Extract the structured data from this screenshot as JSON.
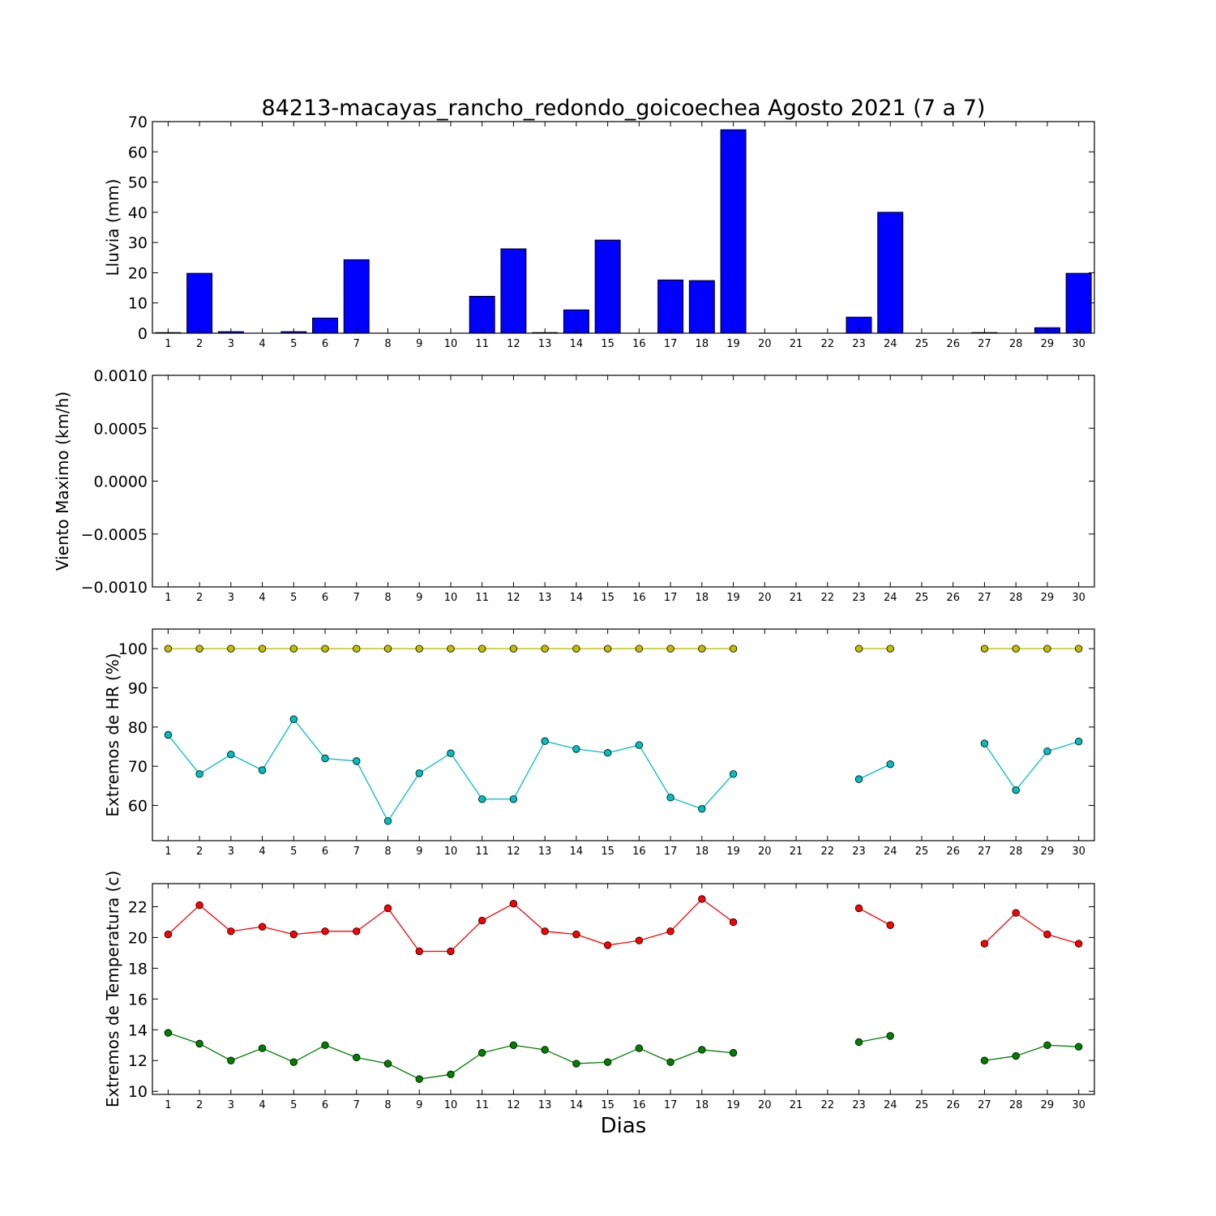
{
  "title": "84213-macayas_rancho_redondo_goicoechea Agosto 2021  (7 a 7)",
  "xlabel": "Dias",
  "chart_data": [
    {
      "type": "bar",
      "ylabel": "Lluvia (mm)",
      "ylim": [
        0,
        70
      ],
      "yticks": [
        "0",
        "10",
        "20",
        "30",
        "40",
        "50",
        "60",
        "70"
      ],
      "x": [
        1,
        2,
        3,
        4,
        5,
        6,
        7,
        8,
        9,
        10,
        11,
        12,
        13,
        14,
        15,
        16,
        17,
        18,
        19,
        20,
        21,
        22,
        23,
        24,
        25,
        26,
        27,
        28,
        29,
        30
      ],
      "values": [
        0.2,
        19.8,
        0.5,
        0,
        0.5,
        5,
        24.3,
        0,
        0,
        0,
        12.2,
        27.9,
        0.2,
        7.7,
        30.8,
        0,
        17.6,
        17.4,
        67.3,
        0,
        0,
        0,
        5.3,
        40,
        0,
        0,
        0.2,
        0,
        1.8,
        19.8
      ],
      "color": "#0000ff"
    },
    {
      "type": "line",
      "ylabel": "Viento Maximo (km/h)",
      "ylim": [
        -0.001,
        0.001
      ],
      "yticks": [
        "−0.0010",
        "−0.0005",
        "0.0000",
        "0.0005",
        "0.0010"
      ],
      "x": [
        1,
        2,
        3,
        4,
        5,
        6,
        7,
        8,
        9,
        10,
        11,
        12,
        13,
        14,
        15,
        16,
        17,
        18,
        19,
        20,
        21,
        22,
        23,
        24,
        25,
        26,
        27,
        28,
        29,
        30
      ],
      "series": []
    },
    {
      "type": "line",
      "ylabel": "Extremos de HR (%)",
      "ylim": [
        51,
        105
      ],
      "yticks": [
        "60",
        "70",
        "80",
        "90",
        "100"
      ],
      "x": [
        1,
        2,
        3,
        4,
        5,
        6,
        7,
        8,
        9,
        10,
        11,
        12,
        13,
        14,
        15,
        16,
        17,
        18,
        19,
        20,
        21,
        22,
        23,
        24,
        25,
        26,
        27,
        28,
        29,
        30
      ],
      "series": [
        {
          "color": "#bfbf00",
          "values": [
            100,
            100,
            100,
            100,
            100,
            100,
            100,
            100,
            100,
            100,
            100,
            100,
            100,
            100,
            100,
            100,
            100,
            100,
            100,
            null,
            null,
            null,
            100,
            100,
            null,
            null,
            100,
            100,
            100,
            100
          ]
        },
        {
          "color": "#00bfbf",
          "values": [
            78,
            68,
            73,
            69,
            82,
            72,
            71.3,
            56,
            68.2,
            73.3,
            61.6,
            61.6,
            76.4,
            74.4,
            73.4,
            75.4,
            62,
            59.1,
            68,
            null,
            null,
            null,
            66.7,
            70.5,
            null,
            null,
            75.8,
            63.9,
            73.8,
            76.3
          ]
        }
      ]
    },
    {
      "type": "line",
      "ylabel": "Extremos de Temperatura (c)",
      "ylim": [
        9.8,
        23.5
      ],
      "yticks": [
        "10",
        "12",
        "14",
        "16",
        "18",
        "20",
        "22"
      ],
      "x": [
        1,
        2,
        3,
        4,
        5,
        6,
        7,
        8,
        9,
        10,
        11,
        12,
        13,
        14,
        15,
        16,
        17,
        18,
        19,
        20,
        21,
        22,
        23,
        24,
        25,
        26,
        27,
        28,
        29,
        30
      ],
      "series": [
        {
          "color": "#ff0000",
          "values": [
            20.2,
            22.1,
            20.4,
            20.7,
            20.2,
            20.4,
            20.4,
            21.9,
            19.1,
            19.1,
            21.1,
            22.2,
            20.4,
            20.2,
            19.5,
            19.8,
            20.4,
            22.5,
            21,
            null,
            null,
            null,
            21.9,
            20.8,
            null,
            null,
            19.6,
            21.6,
            20.2,
            19.6
          ]
        },
        {
          "color": "#008000",
          "values": [
            13.8,
            13.1,
            12,
            12.8,
            11.9,
            13,
            12.2,
            11.8,
            10.8,
            11.1,
            12.5,
            13,
            12.7,
            11.8,
            11.9,
            12.8,
            11.9,
            12.7,
            12.5,
            null,
            null,
            null,
            13.2,
            13.6,
            null,
            null,
            12,
            12.3,
            13,
            12.9
          ]
        }
      ]
    }
  ]
}
